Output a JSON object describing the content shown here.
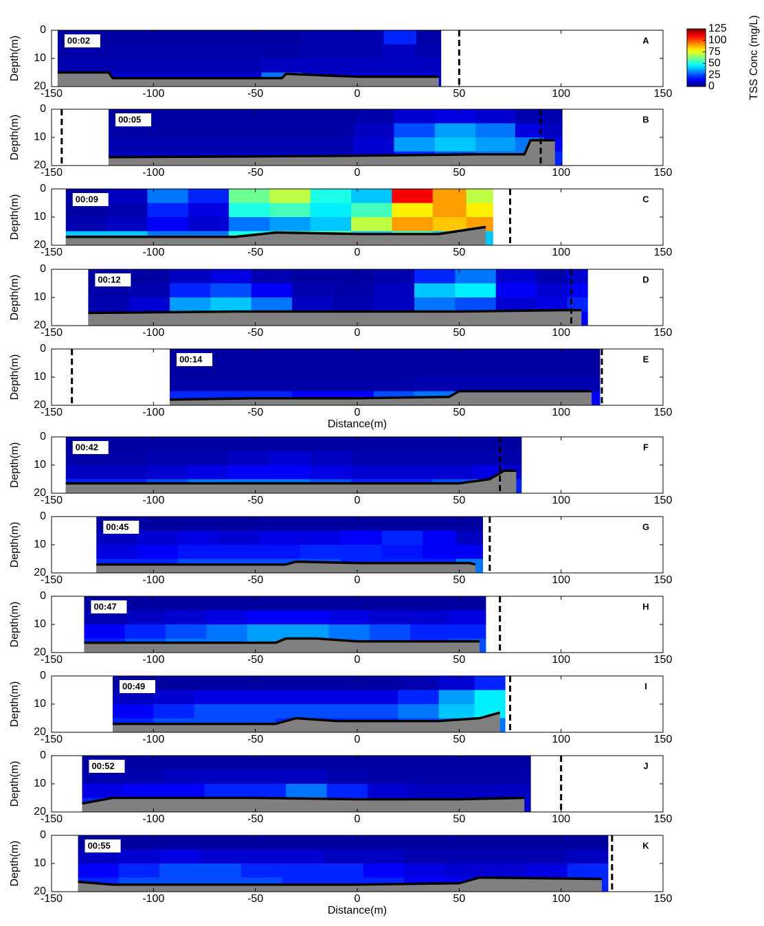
{
  "chart_data": [
    {
      "type": "heatmap",
      "label": "00:02",
      "panel": "A",
      "ylabel": "Depth(m)",
      "xlim": [
        -150,
        150
      ],
      "ylim": [
        20,
        0
      ],
      "xticks": [
        -150,
        -100,
        -50,
        0,
        50,
        100,
        150
      ],
      "yticks": [
        0,
        10,
        20
      ],
      "x": [
        -137,
        -117,
        -97,
        -77,
        -57,
        -37,
        -17,
        3,
        23,
        35
      ],
      "y": [
        2.5,
        7.5,
        12.5,
        17.5
      ],
      "values": [
        [
          4,
          4,
          4,
          4,
          4,
          4,
          6,
          6,
          20,
          5
        ],
        [
          5,
          5,
          5,
          5,
          5,
          5,
          6,
          6,
          8,
          6
        ],
        [
          6,
          6,
          6,
          6,
          6,
          8,
          8,
          8,
          8,
          8
        ],
        [
          10,
          10,
          10,
          10,
          10,
          30,
          10,
          10,
          10,
          10
        ]
      ],
      "bed": {
        "x": [
          -147,
          -122,
          -120,
          -37,
          -35,
          0,
          40
        ],
        "y": [
          15,
          15,
          17,
          17,
          15.5,
          16.5,
          16.5
        ]
      },
      "markers": [
        50
      ]
    },
    {
      "type": "heatmap",
      "label": "00:05",
      "panel": "B",
      "ylabel": "Depth(m)",
      "xlim": [
        -150,
        150
      ],
      "ylim": [
        20,
        0
      ],
      "xticks": [
        -150,
        -100,
        -50,
        0,
        50,
        100,
        150
      ],
      "yticks": [
        0,
        10,
        20
      ],
      "x": [
        -112,
        -92,
        -72,
        -52,
        -32,
        -12,
        8,
        28,
        48,
        68,
        87,
        96
      ],
      "y": [
        2.5,
        7.5,
        12.5,
        17.5
      ],
      "values": [
        [
          4,
          4,
          4,
          4,
          4,
          4,
          5,
          10,
          12,
          10,
          6,
          6
        ],
        [
          5,
          5,
          5,
          5,
          5,
          5,
          8,
          25,
          35,
          30,
          12,
          8
        ],
        [
          6,
          6,
          6,
          6,
          6,
          6,
          10,
          35,
          40,
          35,
          30,
          15
        ],
        [
          8,
          8,
          8,
          8,
          8,
          8,
          10,
          20,
          25,
          30,
          30,
          20
        ]
      ],
      "bed": {
        "x": [
          -122,
          -60,
          0,
          60,
          82,
          85,
          97
        ],
        "y": [
          17,
          16.8,
          16.5,
          16,
          16,
          11,
          11
        ]
      },
      "markers": [
        -145,
        90
      ]
    },
    {
      "type": "heatmap",
      "label": "00:09",
      "panel": "C",
      "ylabel": "Depth(m)",
      "xlim": [
        -150,
        150
      ],
      "ylim": [
        20,
        0
      ],
      "xticks": [
        -150,
        -100,
        -50,
        0,
        50,
        100,
        150
      ],
      "yticks": [
        0,
        10,
        20
      ],
      "x": [
        -133,
        -113,
        -93,
        -73,
        -53,
        -33,
        -13,
        7,
        27,
        47,
        60
      ],
      "y": [
        2.5,
        7.5,
        12.5,
        17.5
      ],
      "values": [
        [
          4,
          8,
          30,
          20,
          60,
          70,
          50,
          40,
          110,
          90,
          70
        ],
        [
          4,
          6,
          20,
          12,
          50,
          55,
          45,
          55,
          80,
          90,
          80
        ],
        [
          6,
          8,
          15,
          10,
          30,
          35,
          40,
          70,
          90,
          85,
          90
        ],
        [
          40,
          40,
          30,
          30,
          50,
          60,
          60,
          40,
          50,
          40,
          40
        ]
      ],
      "bed": {
        "x": [
          -143,
          -60,
          -40,
          0,
          40,
          63
        ],
        "y": [
          17,
          17,
          15.5,
          16,
          16,
          13.5
        ]
      },
      "markers": [
        75
      ]
    },
    {
      "type": "heatmap",
      "label": "00:12",
      "panel": "D",
      "ylabel": "Depth(m)",
      "xlim": [
        -150,
        150
      ],
      "ylim": [
        20,
        0
      ],
      "xticks": [
        -150,
        -100,
        -50,
        0,
        50,
        100,
        150
      ],
      "yticks": [
        0,
        10,
        20
      ],
      "x": [
        -122,
        -102,
        -82,
        -62,
        -42,
        -22,
        -2,
        18,
        38,
        58,
        78,
        98,
        108
      ],
      "y": [
        2.5,
        7.5,
        12.5,
        17.5
      ],
      "values": [
        [
          4,
          4,
          8,
          12,
          6,
          4,
          4,
          6,
          20,
          30,
          10,
          6,
          10
        ],
        [
          5,
          6,
          20,
          25,
          15,
          6,
          5,
          8,
          40,
          45,
          15,
          10,
          15
        ],
        [
          6,
          10,
          35,
          40,
          30,
          8,
          6,
          8,
          30,
          25,
          10,
          12,
          20
        ],
        [
          10,
          12,
          30,
          30,
          15,
          10,
          8,
          8,
          10,
          10,
          10,
          12,
          15
        ]
      ],
      "bed": {
        "x": [
          -132,
          -60,
          0,
          50,
          100,
          110
        ],
        "y": [
          15.5,
          15,
          15,
          15,
          14.5,
          14.5
        ]
      },
      "markers": [
        105
      ]
    },
    {
      "type": "heatmap",
      "label": "00:14",
      "panel": "E",
      "ylabel": "Depth(m)",
      "xlabel": "Distance(m)",
      "xlim": [
        -150,
        150
      ],
      "ylim": [
        20,
        0
      ],
      "xticks": [
        -150,
        -100,
        -50,
        0,
        50,
        100,
        150
      ],
      "yticks": [
        0,
        10,
        20
      ],
      "x": [
        -82,
        -62,
        -42,
        -22,
        -2,
        18,
        38,
        58,
        78,
        98,
        112
      ],
      "y": [
        2.5,
        7.5,
        12.5,
        17.5
      ],
      "values": [
        [
          4,
          4,
          4,
          4,
          4,
          4,
          4,
          4,
          4,
          4,
          4
        ],
        [
          4,
          4,
          4,
          4,
          4,
          4,
          4,
          4,
          4,
          4,
          4
        ],
        [
          5,
          5,
          5,
          5,
          5,
          5,
          6,
          6,
          6,
          6,
          6
        ],
        [
          20,
          20,
          20,
          15,
          15,
          25,
          30,
          20,
          15,
          15,
          15
        ]
      ],
      "bed": {
        "x": [
          -92,
          -50,
          0,
          45,
          50,
          90,
          115
        ],
        "y": [
          18,
          17.5,
          17.5,
          17,
          15,
          15,
          15
        ]
      },
      "markers": [
        -140,
        120
      ]
    },
    {
      "type": "heatmap",
      "label": "00:42",
      "panel": "F",
      "ylabel": "Depth(m)",
      "xlim": [
        -150,
        150
      ],
      "ylim": [
        20,
        0
      ],
      "xticks": [
        -150,
        -100,
        -50,
        0,
        50,
        100,
        150
      ],
      "yticks": [
        0,
        10,
        20
      ],
      "x": [
        -133,
        -113,
        -93,
        -73,
        -53,
        -33,
        -13,
        7,
        27,
        47,
        67,
        76
      ],
      "y": [
        2.5,
        7.5,
        12.5,
        17.5
      ],
      "values": [
        [
          4,
          4,
          4,
          4,
          4,
          4,
          4,
          4,
          4,
          4,
          4,
          4
        ],
        [
          5,
          5,
          6,
          6,
          8,
          10,
          8,
          6,
          6,
          6,
          6,
          5
        ],
        [
          8,
          8,
          10,
          12,
          15,
          15,
          12,
          10,
          10,
          10,
          12,
          10
        ],
        [
          20,
          20,
          25,
          30,
          30,
          30,
          25,
          20,
          20,
          25,
          30,
          20
        ]
      ],
      "bed": {
        "x": [
          -143,
          0,
          50,
          65,
          72,
          78
        ],
        "y": [
          16.5,
          16.5,
          16.5,
          15,
          12,
          12
        ]
      },
      "markers": [
        70
      ]
    },
    {
      "type": "heatmap",
      "label": "00:45",
      "panel": "G",
      "ylabel": "Depth(m)",
      "xlim": [
        -150,
        150
      ],
      "ylim": [
        20,
        0
      ],
      "xticks": [
        -150,
        -100,
        -50,
        0,
        50,
        100,
        150
      ],
      "yticks": [
        0,
        10,
        20
      ],
      "x": [
        -118,
        -98,
        -78,
        -58,
        -38,
        -18,
        2,
        22,
        42,
        55
      ],
      "y": [
        2.5,
        7.5,
        12.5,
        17.5
      ],
      "values": [
        [
          4,
          4,
          4,
          4,
          4,
          4,
          4,
          4,
          4,
          4
        ],
        [
          8,
          10,
          12,
          10,
          12,
          12,
          15,
          20,
          15,
          8
        ],
        [
          12,
          15,
          18,
          18,
          18,
          20,
          20,
          18,
          15,
          15
        ],
        [
          20,
          20,
          25,
          25,
          25,
          25,
          20,
          20,
          20,
          30
        ]
      ],
      "bed": {
        "x": [
          -128,
          -35,
          -30,
          0,
          55,
          58
        ],
        "y": [
          17,
          17,
          16,
          16.5,
          16.5,
          17
        ]
      },
      "markers": [
        65
      ]
    },
    {
      "type": "heatmap",
      "label": "00:47",
      "panel": "H",
      "ylabel": "Depth(m)",
      "xlim": [
        -150,
        150
      ],
      "ylim": [
        20,
        0
      ],
      "xticks": [
        -150,
        -100,
        -50,
        0,
        50,
        100,
        150
      ],
      "yticks": [
        0,
        10,
        20
      ],
      "x": [
        -124,
        -104,
        -84,
        -64,
        -44,
        -24,
        -4,
        16,
        36,
        54
      ],
      "y": [
        2.5,
        7.5,
        12.5,
        17.5
      ],
      "values": [
        [
          4,
          4,
          4,
          4,
          4,
          4,
          4,
          4,
          4,
          4
        ],
        [
          6,
          8,
          10,
          12,
          15,
          15,
          12,
          10,
          10,
          12
        ],
        [
          15,
          20,
          25,
          30,
          35,
          35,
          30,
          25,
          20,
          20
        ],
        [
          20,
          25,
          30,
          30,
          35,
          35,
          30,
          25,
          20,
          25
        ]
      ],
      "bed": {
        "x": [
          -134,
          -40,
          -35,
          -20,
          0,
          60
        ],
        "y": [
          16.5,
          16.5,
          15,
          15,
          16,
          16
        ]
      },
      "markers": [
        70
      ]
    },
    {
      "type": "heatmap",
      "label": "00:49",
      "panel": "I",
      "ylabel": "Depth(m)",
      "xlim": [
        -150,
        150
      ],
      "ylim": [
        20,
        0
      ],
      "xticks": [
        -150,
        -100,
        -50,
        0,
        50,
        100,
        150
      ],
      "yticks": [
        0,
        10,
        20
      ],
      "x": [
        -110,
        -90,
        -70,
        -50,
        -30,
        -10,
        10,
        30,
        50,
        65
      ],
      "y": [
        2.5,
        7.5,
        12.5,
        17.5
      ],
      "values": [
        [
          4,
          4,
          4,
          4,
          4,
          4,
          4,
          6,
          10,
          20
        ],
        [
          8,
          10,
          12,
          12,
          12,
          12,
          12,
          20,
          35,
          45
        ],
        [
          15,
          20,
          25,
          25,
          25,
          25,
          25,
          30,
          40,
          45
        ],
        [
          20,
          25,
          25,
          25,
          20,
          20,
          20,
          25,
          30,
          30
        ]
      ],
      "bed": {
        "x": [
          -120,
          -40,
          -30,
          -10,
          40,
          60,
          70
        ],
        "y": [
          17,
          17,
          15,
          16,
          16,
          15,
          13
        ]
      },
      "markers": [
        75
      ]
    },
    {
      "type": "heatmap",
      "label": "00:52",
      "panel": "J",
      "ylabel": "Depth(m)",
      "xlim": [
        -150,
        150
      ],
      "ylim": [
        20,
        0
      ],
      "xticks": [
        -150,
        -100,
        -50,
        0,
        50,
        100,
        150
      ],
      "yticks": [
        0,
        10,
        20
      ],
      "x": [
        -125,
        -105,
        -85,
        -65,
        -45,
        -25,
        -5,
        15,
        35,
        55,
        75
      ],
      "y": [
        2.5,
        7.5,
        12.5,
        17.5
      ],
      "values": [
        [
          4,
          4,
          4,
          4,
          4,
          4,
          4,
          4,
          4,
          4,
          4
        ],
        [
          6,
          6,
          8,
          8,
          8,
          8,
          6,
          5,
          5,
          5,
          5
        ],
        [
          12,
          15,
          15,
          20,
          20,
          30,
          20,
          10,
          8,
          8,
          8
        ],
        [
          20,
          20,
          20,
          20,
          25,
          30,
          25,
          15,
          10,
          10,
          10
        ]
      ],
      "bed": {
        "x": [
          -135,
          -120,
          -50,
          0,
          50,
          82
        ],
        "y": [
          17,
          15,
          15,
          15.5,
          15.5,
          15
        ]
      },
      "markers": [
        100
      ]
    },
    {
      "type": "heatmap",
      "label": "00:55",
      "panel": "K",
      "ylabel": "Depth(m)",
      "xlabel": "Distance(m)",
      "xlim": [
        -150,
        150
      ],
      "ylim": [
        20,
        0
      ],
      "xticks": [
        -150,
        -100,
        -50,
        0,
        50,
        100,
        150
      ],
      "yticks": [
        0,
        10,
        20
      ],
      "x": [
        -127,
        -107,
        -87,
        -67,
        -47,
        -27,
        -7,
        13,
        33,
        53,
        73,
        93,
        113
      ],
      "y": [
        2.5,
        7.5,
        12.5,
        17.5
      ],
      "values": [
        [
          4,
          4,
          4,
          4,
          4,
          4,
          4,
          4,
          4,
          4,
          4,
          4,
          4
        ],
        [
          8,
          10,
          12,
          10,
          10,
          10,
          8,
          8,
          6,
          6,
          6,
          6,
          8
        ],
        [
          15,
          20,
          25,
          25,
          20,
          20,
          20,
          15,
          12,
          10,
          10,
          12,
          20
        ],
        [
          20,
          25,
          25,
          25,
          25,
          20,
          20,
          20,
          15,
          15,
          15,
          15,
          20
        ]
      ],
      "bed": {
        "x": [
          -137,
          -120,
          0,
          50,
          60,
          120
        ],
        "y": [
          16.5,
          17.5,
          17.5,
          17,
          15,
          15.5
        ]
      },
      "markers": [
        125
      ]
    },
    {
      "type": "colorbar",
      "label": "TSS Conc (mg/L)",
      "ylim": [
        0,
        125
      ],
      "yticks": [
        0,
        25,
        50,
        75,
        100,
        125
      ]
    }
  ]
}
